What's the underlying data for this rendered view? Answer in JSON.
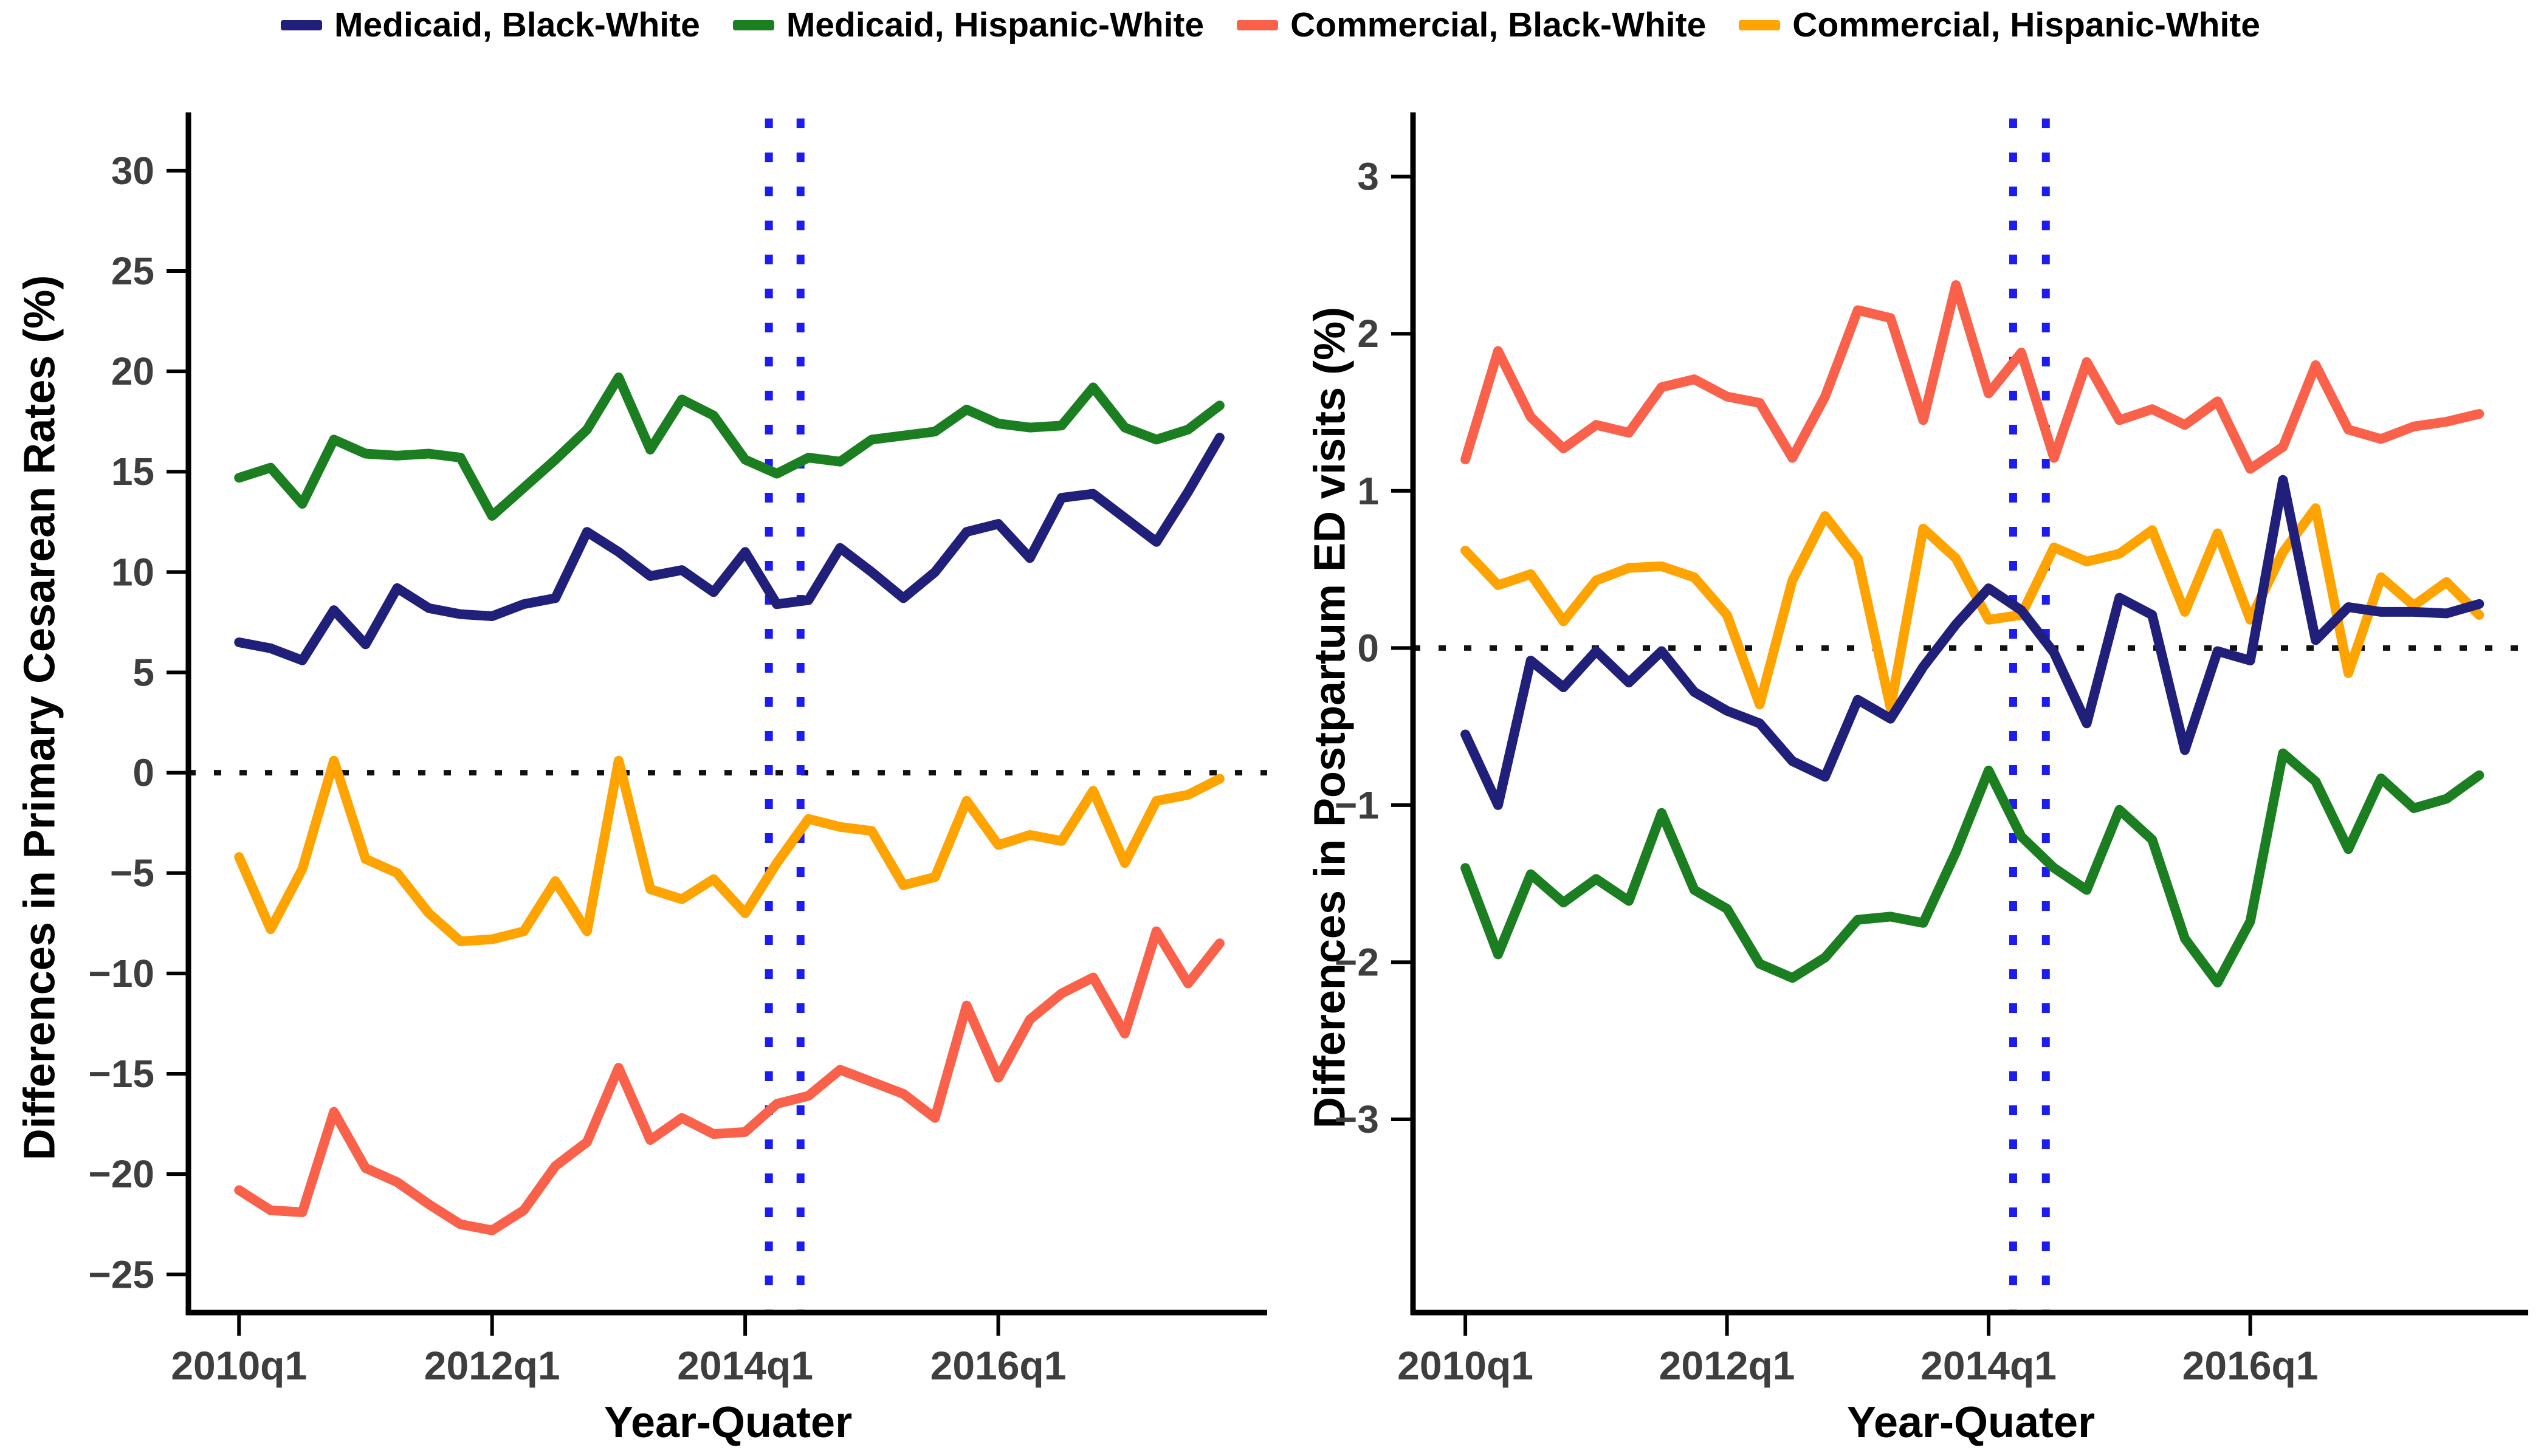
{
  "legend": {
    "items": [
      {
        "label": "Medicaid, Black-White",
        "color": "#20207A"
      },
      {
        "label": "Medicaid, Hispanic-White",
        "color": "#1B7E20"
      },
      {
        "label": "Commercial, Black-White",
        "color": "#FA614B"
      },
      {
        "label": "Commercial, Hispanic-White",
        "color": "#FFA300"
      }
    ]
  },
  "colors": {
    "navy": "#20207A",
    "green": "#1B7E20",
    "salmon": "#FA614B",
    "orange": "#FFA300",
    "vline_blue": "#1C1CEF",
    "tick_label": "#3E3E3E",
    "axis": "#000000"
  },
  "chart_data": [
    {
      "type": "line",
      "panel": "left",
      "ylabel": "Differences in Primary Cesarean Rates (%)",
      "xlabel": "Year-Quater",
      "x_unit": "quarter index, 0 = 2010q1 ... 31 = 2017q4",
      "x_tick_labels": [
        "2010q1",
        "2012q1",
        "2014q1",
        "2016q1"
      ],
      "x_tick_quarters": [
        0,
        8,
        16,
        24
      ],
      "y_tick_labels": [
        "30",
        "25",
        "20",
        "15",
        "10",
        "5",
        "0",
        "−5",
        "−10",
        "−15",
        "−20",
        "−25"
      ],
      "y_tick_values": [
        30,
        25,
        20,
        15,
        10,
        5,
        0,
        -5,
        -10,
        -15,
        -20,
        -25
      ],
      "ylim": [
        -26.9,
        32.6
      ],
      "xlim": [
        -1.6,
        32.5
      ],
      "grid": false,
      "zero_reference_line": 0,
      "vertical_dotted_lines_quarters": [
        16.75,
        17.75
      ],
      "series": [
        {
          "name": "Medicaid, Black-White",
          "color": "#20207A",
          "values": [
            6.5,
            6.2,
            5.6,
            8.1,
            6.4,
            9.2,
            8.2,
            7.9,
            7.8,
            8.4,
            8.7,
            12.0,
            11.0,
            9.8,
            10.1,
            9.0,
            11.0,
            8.4,
            8.6,
            11.2,
            10.0,
            8.7,
            10.0,
            12.0,
            12.4,
            10.7,
            13.7,
            13.9,
            12.7,
            11.5,
            14.0,
            16.7
          ]
        },
        {
          "name": "Medicaid, Hispanic-White",
          "color": "#1B7E20",
          "values": [
            14.7,
            15.2,
            13.4,
            16.6,
            15.9,
            15.8,
            15.9,
            15.7,
            12.8,
            14.2,
            15.6,
            17.1,
            19.7,
            16.1,
            18.6,
            17.8,
            15.6,
            14.9,
            15.7,
            15.5,
            16.6,
            16.8,
            17.0,
            18.1,
            17.4,
            17.2,
            17.3,
            19.2,
            17.2,
            16.6,
            17.1,
            18.3
          ]
        },
        {
          "name": "Commercial, Black-White",
          "color": "#FA614B",
          "values": [
            -20.8,
            -21.8,
            -21.9,
            -16.9,
            -19.7,
            -20.4,
            -21.5,
            -22.5,
            -22.8,
            -21.8,
            -19.6,
            -18.4,
            -14.7,
            -18.3,
            -17.2,
            -18.0,
            -17.9,
            -16.5,
            -16.1,
            -14.8,
            -15.4,
            -16.0,
            -17.2,
            -11.6,
            -15.2,
            -12.3,
            -11.0,
            -10.2,
            -13.0,
            -7.9,
            -10.5,
            -8.5
          ]
        },
        {
          "name": "Commercial, Hispanic-White",
          "color": "#FFA300",
          "values": [
            -4.2,
            -7.8,
            -4.8,
            0.6,
            -4.3,
            -5.0,
            -7.0,
            -8.4,
            -8.3,
            -7.9,
            -5.4,
            -7.9,
            0.6,
            -5.8,
            -6.3,
            -5.3,
            -7.0,
            -4.5,
            -2.3,
            -2.7,
            -2.9,
            -5.6,
            -5.2,
            -1.4,
            -3.6,
            -3.1,
            -3.4,
            -0.9,
            -4.5,
            -1.4,
            -1.1,
            -0.3
          ]
        }
      ]
    },
    {
      "type": "line",
      "panel": "right",
      "ylabel": "Differences in Postpartum ED visits  (%)",
      "xlabel": "Year-Quater",
      "x_unit": "quarter index, 0 = 2010q1 ... 31 = 2017q4",
      "x_tick_labels": [
        "2010q1",
        "2012q1",
        "2014q1",
        "2016q1"
      ],
      "x_tick_quarters": [
        0,
        8,
        16,
        24
      ],
      "y_tick_labels": [
        "3",
        "2",
        "1",
        "0",
        "−1",
        "−2",
        "−3"
      ],
      "y_tick_values": [
        3,
        2,
        1,
        0,
        -1,
        -2,
        -3
      ],
      "ylim": [
        -4.23,
        3.37
      ],
      "xlim": [
        -1.6,
        32.5
      ],
      "grid": false,
      "zero_reference_line": 0,
      "vertical_dotted_lines_quarters": [
        16.75,
        17.75
      ],
      "series": [
        {
          "name": "Medicaid, Black-White",
          "color": "#20207A",
          "values": [
            -0.55,
            -1.0,
            -0.08,
            -0.25,
            -0.02,
            -0.22,
            -0.02,
            -0.28,
            -0.4,
            -0.48,
            -0.72,
            -0.82,
            -0.33,
            -0.45,
            -0.12,
            0.15,
            0.38,
            0.24,
            -0.03,
            -0.48,
            0.32,
            0.21,
            -0.65,
            -0.02,
            -0.08,
            1.07,
            0.05,
            0.26,
            0.23,
            0.23,
            0.22,
            0.28
          ]
        },
        {
          "name": "Medicaid, Hispanic-White",
          "color": "#1B7E20",
          "values": [
            -1.4,
            -1.95,
            -1.44,
            -1.62,
            -1.47,
            -1.61,
            -1.05,
            -1.54,
            -1.66,
            -2.01,
            -2.1,
            -1.97,
            -1.73,
            -1.71,
            -1.75,
            -1.3,
            -0.78,
            -1.2,
            -1.4,
            -1.54,
            -1.03,
            -1.22,
            -1.85,
            -2.13,
            -1.74,
            -0.67,
            -0.85,
            -1.28,
            -0.83,
            -1.02,
            -0.96,
            -0.81
          ]
        },
        {
          "name": "Commercial, Black-White",
          "color": "#FA614B",
          "values": [
            1.2,
            1.89,
            1.47,
            1.27,
            1.42,
            1.37,
            1.66,
            1.71,
            1.6,
            1.56,
            1.21,
            1.6,
            2.15,
            2.1,
            1.45,
            2.31,
            1.62,
            1.88,
            1.21,
            1.82,
            1.45,
            1.52,
            1.42,
            1.57,
            1.14,
            1.28,
            1.8,
            1.39,
            1.33,
            1.41,
            1.44,
            1.49
          ]
        },
        {
          "name": "Commercial, Hispanic-White",
          "color": "#FFA300",
          "values": [
            0.62,
            0.4,
            0.47,
            0.17,
            0.43,
            0.51,
            0.52,
            0.45,
            0.21,
            -0.36,
            0.43,
            0.84,
            0.57,
            -0.38,
            0.76,
            0.57,
            0.18,
            0.21,
            0.64,
            0.55,
            0.6,
            0.75,
            0.23,
            0.73,
            0.18,
            0.61,
            0.89,
            -0.16,
            0.45,
            0.27,
            0.42,
            0.21
          ]
        }
      ]
    }
  ]
}
